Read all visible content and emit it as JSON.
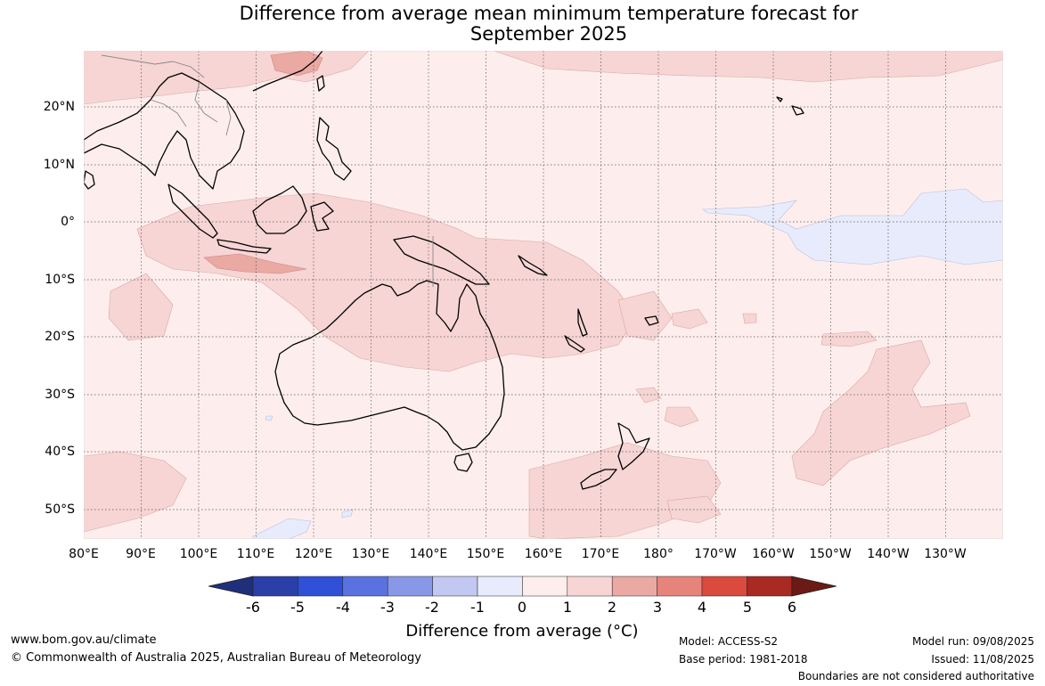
{
  "title_line1": "Difference from average mean minimum temperature forecast for",
  "title_line2": "September 2025",
  "longitude_labels": [
    "80°E",
    "90°E",
    "100°E",
    "110°E",
    "120°E",
    "130°E",
    "140°E",
    "150°E",
    "160°E",
    "170°E",
    "180°",
    "170°W",
    "160°W",
    "150°W",
    "140°W",
    "130°W"
  ],
  "latitude_labels": [
    "20°N",
    "10°N",
    "0°",
    "10°S",
    "20°S",
    "30°S",
    "40°S",
    "50°S"
  ],
  "colorbar": {
    "title": "Difference from average (°C)",
    "labels": [
      "-6",
      "-5",
      "-4",
      "-3",
      "-2",
      "-1",
      "0",
      "1",
      "2",
      "3",
      "4",
      "5",
      "6"
    ],
    "colors": [
      "#1f2f7a",
      "#2a3fa8",
      "#3050d8",
      "#5a72e0",
      "#8898e6",
      "#c2c8f2",
      "#e8ebfb",
      "#fdeeed",
      "#f6d5d4",
      "#eba9a4",
      "#e6847c",
      "#da4b3d",
      "#a82a22",
      "#6b1a14"
    ]
  },
  "footer": {
    "website": "www.bom.gov.au/climate",
    "copyright": "© Commonwealth of Australia 2025, Australian Bureau of Meteorology",
    "model": "Model: ACCESS-S2",
    "base_period": "Base period: 1981-2018",
    "model_run": "Model run: 09/08/2025",
    "issued": "Issued: 11/08/2025",
    "disclaimer": "Boundaries are not considered authoritative"
  }
}
